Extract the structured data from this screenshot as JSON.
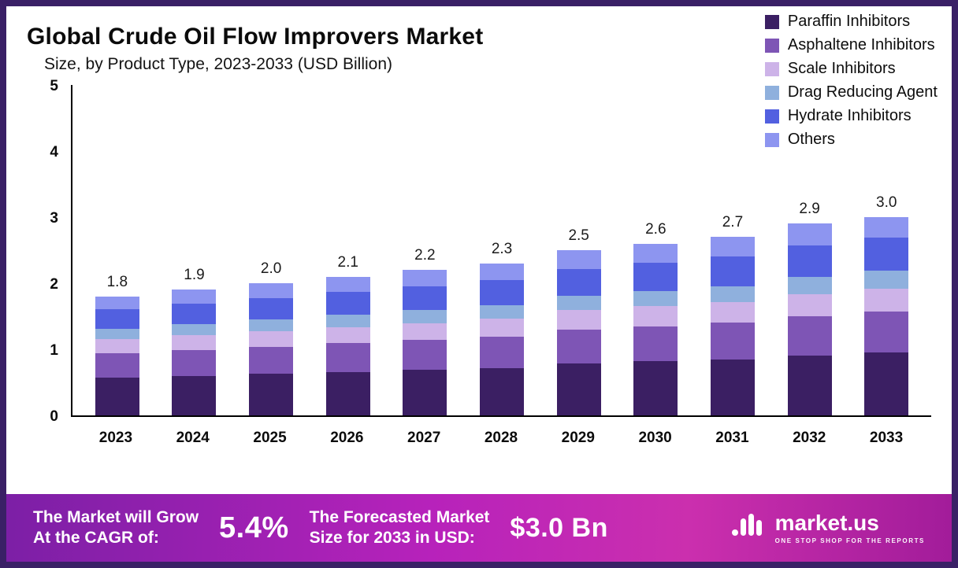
{
  "header": {
    "title": "Global Crude Oil Flow Improvers Market",
    "subtitle": "Size, by Product Type, 2023-2033 (USD Billion)"
  },
  "colors": {
    "frame": "#3a2066",
    "banner_start": "#7c1fa6",
    "banner_mid": "#b722bb",
    "banner_end": "#a21c9a",
    "axis": "#000000"
  },
  "chart_data": {
    "type": "bar",
    "stacked": true,
    "title": "Global Crude Oil Flow Improvers Market Size, by Product Type, 2023-2033 (USD Billion)",
    "xlabel": "",
    "ylabel": "",
    "ylim": [
      0,
      5
    ],
    "yticks": [
      0,
      1,
      2,
      3,
      4,
      5
    ],
    "grid": false,
    "legend_position": "top-right",
    "categories": [
      "2023",
      "2024",
      "2025",
      "2026",
      "2027",
      "2028",
      "2029",
      "2030",
      "2031",
      "2032",
      "2033"
    ],
    "totals": [
      1.8,
      1.9,
      2.0,
      2.1,
      2.2,
      2.3,
      2.5,
      2.6,
      2.7,
      2.9,
      3.0
    ],
    "series": [
      {
        "name": "Paraffin Inhibitors",
        "color": "#3b1f63",
        "values": [
          0.57,
          0.6,
          0.63,
          0.66,
          0.69,
          0.72,
          0.79,
          0.82,
          0.85,
          0.91,
          0.95
        ]
      },
      {
        "name": "Asphaltene Inhibitors",
        "color": "#7e55b5",
        "values": [
          0.37,
          0.39,
          0.41,
          0.43,
          0.45,
          0.47,
          0.51,
          0.53,
          0.55,
          0.59,
          0.62
        ]
      },
      {
        "name": "Scale Inhibitors",
        "color": "#cdb3e8",
        "values": [
          0.21,
          0.22,
          0.23,
          0.24,
          0.25,
          0.27,
          0.29,
          0.3,
          0.31,
          0.33,
          0.35
        ]
      },
      {
        "name": "Drag Reducing Agent",
        "color": "#8fb0dd",
        "values": [
          0.16,
          0.17,
          0.18,
          0.19,
          0.2,
          0.21,
          0.22,
          0.23,
          0.24,
          0.26,
          0.27
        ]
      },
      {
        "name": "Hydrate Inhibitors",
        "color": "#5260e0",
        "values": [
          0.3,
          0.31,
          0.33,
          0.35,
          0.36,
          0.38,
          0.41,
          0.43,
          0.45,
          0.48,
          0.5
        ]
      },
      {
        "name": "Others",
        "color": "#8d95f0",
        "values": [
          0.19,
          0.21,
          0.22,
          0.23,
          0.25,
          0.25,
          0.28,
          0.29,
          0.3,
          0.33,
          0.31
        ]
      }
    ]
  },
  "banner": {
    "grow_line1": "The Market will Grow",
    "grow_line2": "At the CAGR of:",
    "cagr_value": "5.4%",
    "forecast_line1": "The Forecasted Market",
    "forecast_line2": "Size for 2033 in USD:",
    "forecast_value": "$3.0 Bn",
    "brand": "market.us",
    "tagline": "ONE STOP SHOP FOR THE REPORTS"
  }
}
